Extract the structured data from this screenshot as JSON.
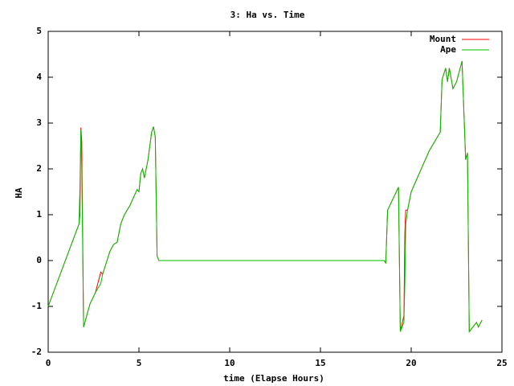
{
  "chart_data": {
    "type": "line",
    "title": "3: Ha vs. Time",
    "x_label": "time (Elapse Hours)",
    "y_label": "HA",
    "x": [
      0,
      1.7,
      1.75,
      1.8,
      1.85,
      1.95,
      2.3,
      2.6,
      2.9,
      3.0,
      3.4,
      3.6,
      3.8,
      4.0,
      4.2,
      4.5,
      4.9,
      5.0,
      5.1,
      5.2,
      5.3,
      5.5,
      5.7,
      5.8,
      5.9,
      6.0,
      6.1,
      18.5,
      18.6,
      18.7,
      19.3,
      19.4,
      19.6,
      19.65,
      19.7,
      19.8,
      20.0,
      21.0,
      21.6,
      21.7,
      21.9,
      22.0,
      22.1,
      22.3,
      22.5,
      22.8,
      23.0,
      23.1,
      23.2,
      23.6,
      23.7,
      23.9
    ],
    "series": [
      {
        "name": "Mount",
        "color": "#ff0000",
        "values": [
          -1.0,
          0.8,
          1.0,
          2.9,
          2.6,
          -1.45,
          -0.95,
          -0.7,
          -0.25,
          -0.3,
          0.2,
          0.35,
          0.4,
          0.8,
          1.0,
          1.2,
          1.55,
          1.5,
          1.9,
          2.0,
          1.8,
          2.2,
          2.8,
          2.92,
          2.7,
          0.1,
          0.0,
          0.0,
          -0.05,
          1.1,
          1.6,
          -1.55,
          -1.2,
          0.6,
          1.1,
          1.1,
          1.5,
          2.4,
          2.8,
          3.95,
          4.2,
          3.9,
          4.2,
          3.75,
          3.9,
          4.35,
          2.2,
          2.35,
          -1.55,
          -1.35,
          -1.45,
          -1.3
        ]
      },
      {
        "name": "Ape",
        "color": "#00c000",
        "values": [
          -1.0,
          0.8,
          1.6,
          2.85,
          2.0,
          -1.45,
          -0.95,
          -0.7,
          -0.5,
          -0.3,
          0.2,
          0.35,
          0.4,
          0.8,
          1.0,
          1.2,
          1.55,
          1.5,
          1.9,
          2.0,
          1.8,
          2.2,
          2.8,
          2.92,
          2.7,
          0.1,
          0.0,
          0.0,
          -0.05,
          1.1,
          1.6,
          -1.55,
          -1.35,
          -0.5,
          0.8,
          1.1,
          1.5,
          2.4,
          2.8,
          3.95,
          4.2,
          3.9,
          4.2,
          3.75,
          3.9,
          4.35,
          2.2,
          2.35,
          -1.55,
          -1.35,
          -1.45,
          -1.3
        ]
      }
    ],
    "xlim": [
      0,
      25
    ],
    "xticks": [
      0,
      5,
      10,
      15,
      20,
      25
    ],
    "ylim": [
      -2,
      5
    ],
    "yticks": [
      -2,
      -1,
      0,
      1,
      2,
      3,
      4,
      5
    ],
    "grid": false,
    "legend": "top-right"
  }
}
